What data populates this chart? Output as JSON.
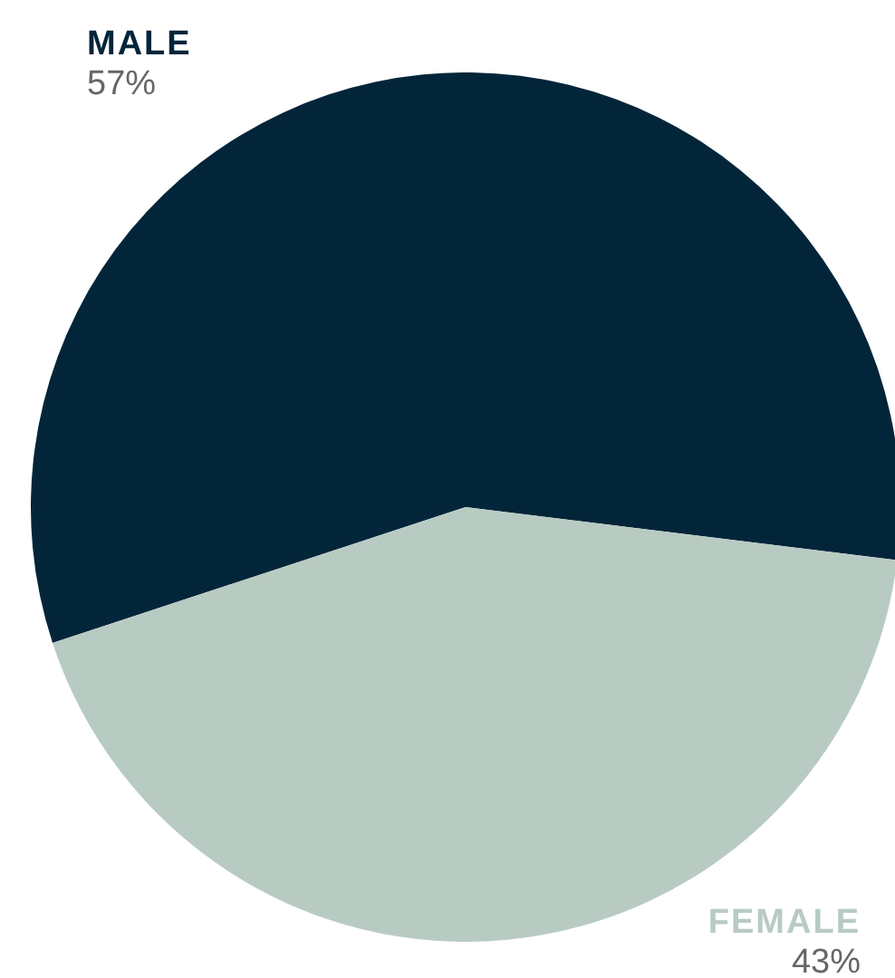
{
  "chart_data": {
    "type": "pie",
    "categories": [
      "MALE",
      "FEMALE"
    ],
    "values": [
      57,
      43
    ],
    "value_labels": [
      "57%",
      "43%"
    ],
    "colors": [
      "#03253a",
      "#b8cbc2"
    ]
  }
}
